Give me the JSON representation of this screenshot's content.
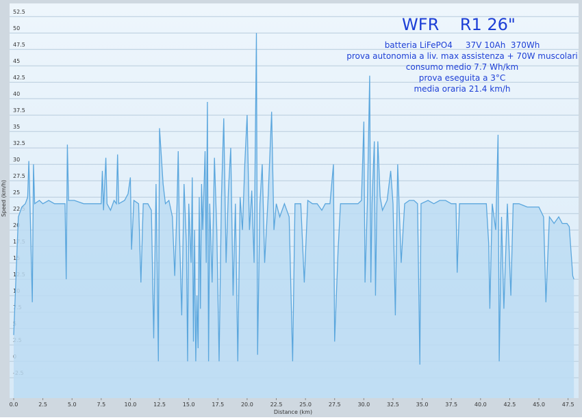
{
  "chart_data": {
    "type": "area",
    "title": "WFR    R1 26\"",
    "annotations": [
      "batteria LiFePO4     37V 10Ah  370Wh",
      "prova autonomia a liv. max assistenza + 70W muscolari",
      "consumo medio 7.7 Wh/km",
      "prova eseguita a 3°C",
      "media oraria 21.4 km/h"
    ],
    "x_label": "Distance  (km)",
    "y_label": "Speed (km/h)",
    "color": "#5aa6dd",
    "fill": "#bcdcf3",
    "grid": true,
    "xlim": [
      -0.35,
      48.4
    ],
    "ylim": [
      -5.6,
      54.5
    ],
    "xticks": [
      {
        "value": 0,
        "label": "0.0"
      },
      2.5,
      {
        "value": 5,
        "label": "5.0"
      },
      7.5,
      {
        "value": 10,
        "label": "10.0"
      },
      12.5,
      {
        "value": 15,
        "label": "15.0"
      },
      17.5,
      {
        "value": 20,
        "label": "20.0"
      },
      22.5,
      {
        "value": 25,
        "label": "25.0"
      },
      27.5,
      {
        "value": 30,
        "label": "30.0"
      },
      32.5,
      {
        "value": 35,
        "label": "35.0"
      },
      37.5,
      {
        "value": 40,
        "label": "40.0"
      },
      42.5,
      {
        "value": 45,
        "label": "45.0"
      },
      47.5
    ],
    "yticks": [
      -2.5,
      0,
      2.5,
      5,
      7.5,
      10,
      12.5,
      15,
      17.5,
      20,
      22.5,
      25,
      27.5,
      30,
      32.5,
      35,
      37.5,
      40,
      42.5,
      45,
      47.5,
      50,
      52.5
    ],
    "x": [
      0,
      0.2,
      0.4,
      0.7,
      1.0,
      1.2,
      1.3,
      1.4,
      1.6,
      1.7,
      1.8,
      2.2,
      2.5,
      3,
      3.5,
      4,
      4.4,
      4.5,
      4.6,
      4.7,
      5.2,
      6,
      7,
      7.5,
      7.6,
      7.7,
      7.9,
      8,
      8.3,
      8.6,
      8.8,
      8.9,
      9,
      9.5,
      9.8,
      10.0,
      10.1,
      10.3,
      10.7,
      10.9,
      11.1,
      11.5,
      11.8,
      12.0,
      12.2,
      12.4,
      12.5,
      12.8,
      13.0,
      13.3,
      13.6,
      13.8,
      14.0,
      14.1,
      14.2,
      14.4,
      14.6,
      14.8,
      14.9,
      15.0,
      15.2,
      15.3,
      15.4,
      15.5,
      15.6,
      15.7,
      15.8,
      15.9,
      16.0,
      16.1,
      16.2,
      16.4,
      16.5,
      16.6,
      16.7,
      16.8,
      17.0,
      17.2,
      17.4,
      17.6,
      17.8,
      18.0,
      18.2,
      18.4,
      18.6,
      18.8,
      19.0,
      19.2,
      19.4,
      19.6,
      19.8,
      20.0,
      20.2,
      20.4,
      20.6,
      20.8,
      20.9,
      21.1,
      21.3,
      21.5,
      21.8,
      22.1,
      22.3,
      22.5,
      22.8,
      23.2,
      23.6,
      23.9,
      24.1,
      24.6,
      24.9,
      25.2,
      25.6,
      26.0,
      26.4,
      26.7,
      27.1,
      27.4,
      27.5,
      27.8,
      28.0,
      28.5,
      29.0,
      29.5,
      29.8,
      30.0,
      30.1,
      30.3,
      30.5,
      30.6,
      30.7,
      30.9,
      31.0,
      31.2,
      31.4,
      31.6,
      32.0,
      32.3,
      32.5,
      32.7,
      32.9,
      33.2,
      33.5,
      33.9,
      34.3,
      34.6,
      34.8,
      34.9,
      35.5,
      36,
      36.5,
      37,
      37.5,
      37.9,
      38,
      38.2,
      39,
      40,
      40.5,
      40.7,
      40.8,
      41.0,
      41.3,
      41.5,
      41.6,
      41.8,
      42.0,
      42.3,
      42.6,
      42.8,
      43.3,
      44,
      45,
      45.4,
      45.6,
      45.9,
      46.3,
      46.7,
      47,
      47.4,
      47.6,
      47.9,
      48.0
    ],
    "y": [
      4,
      13,
      22,
      23.5,
      24,
      25,
      30.5,
      24,
      9,
      30,
      24,
      24.5,
      24,
      24.5,
      24,
      24,
      24,
      12.5,
      33,
      24.5,
      24.5,
      24,
      24,
      24,
      29,
      23,
      31,
      24,
      23,
      24.5,
      24,
      31.5,
      24,
      24.5,
      25.5,
      28,
      17,
      24.5,
      24,
      12,
      24,
      24,
      23,
      3.5,
      27,
      0,
      35.5,
      27,
      24,
      24.5,
      22,
      13,
      24,
      32,
      20,
      7,
      27,
      18,
      0,
      24,
      15,
      28,
      3,
      20,
      0,
      10,
      2,
      25,
      8,
      27,
      20,
      32,
      15,
      39.5,
      0,
      24,
      12,
      31,
      20,
      0,
      25,
      37,
      15,
      26,
      32.5,
      10,
      24,
      0,
      25,
      20,
      30,
      37.5,
      20,
      26,
      15,
      50,
      1,
      24,
      30,
      15,
      25,
      38,
      20,
      24,
      22,
      24,
      22,
      0,
      24,
      24,
      12,
      24.5,
      24,
      24,
      23,
      24,
      24,
      30,
      3,
      17,
      24,
      24,
      24,
      24,
      24.5,
      36.5,
      12,
      24,
      43.5,
      12,
      24,
      33.5,
      10,
      33.5,
      25,
      23,
      24.5,
      29,
      24,
      7,
      30,
      15,
      24,
      24.5,
      24.5,
      24,
      -0.5,
      24,
      24.5,
      24,
      24.5,
      24.5,
      24,
      24,
      13.5,
      24,
      24,
      24,
      24,
      18,
      8,
      24,
      20,
      34.5,
      0,
      22,
      8,
      24,
      10,
      24,
      24,
      23.5,
      23.5,
      22,
      9,
      22,
      21,
      22,
      21,
      21,
      20.5,
      13,
      12.5
    ]
  }
}
